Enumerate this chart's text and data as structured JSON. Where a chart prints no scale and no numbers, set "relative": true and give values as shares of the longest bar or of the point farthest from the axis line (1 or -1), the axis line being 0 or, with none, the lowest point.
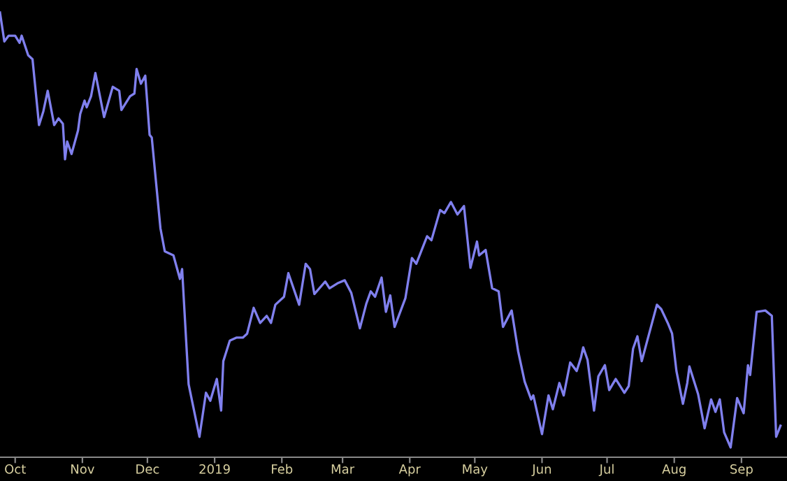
{
  "chart_data": {
    "type": "line",
    "relative": true,
    "grid": false,
    "legend": false,
    "marker": "none",
    "line_style": "solid",
    "xlim": [
      "2018-09-24",
      "2019-09-22"
    ],
    "xticks": [
      {
        "value": "2018-10-01",
        "label": "Oct"
      },
      {
        "value": "2018-11-01",
        "label": "Nov"
      },
      {
        "value": "2018-12-01",
        "label": "Dec"
      },
      {
        "value": "2019-01-01",
        "label": "2019"
      },
      {
        "value": "2019-02-01",
        "label": "Feb"
      },
      {
        "value": "2019-03-01",
        "label": "Mar"
      },
      {
        "value": "2019-04-01",
        "label": "Apr"
      },
      {
        "value": "2019-05-01",
        "label": "May"
      },
      {
        "value": "2019-06-01",
        "label": "Jun"
      },
      {
        "value": "2019-07-01",
        "label": "Jul"
      },
      {
        "value": "2019-08-01",
        "label": "Aug"
      },
      {
        "value": "2019-09-01",
        "label": "Sep"
      }
    ],
    "series": [
      {
        "color": "#8080ee",
        "x": [
          "2018-09-24",
          "2018-09-26",
          "2018-09-28",
          "2018-10-01",
          "2018-10-03",
          "2018-10-04",
          "2018-10-07",
          "2018-10-09",
          "2018-10-12",
          "2018-10-14",
          "2018-10-16",
          "2018-10-19",
          "2018-10-21",
          "2018-10-23",
          "2018-10-24",
          "2018-10-25",
          "2018-10-27",
          "2018-10-30",
          "2018-10-31",
          "2018-11-02",
          "2018-11-03",
          "2018-11-05",
          "2018-11-07",
          "2018-11-11",
          "2018-11-15",
          "2018-11-18",
          "2018-11-19",
          "2018-11-23",
          "2018-11-25",
          "2018-11-26",
          "2018-11-28",
          "2018-11-30",
          "2018-12-02",
          "2018-12-03",
          "2018-12-07",
          "2018-12-09",
          "2018-12-13",
          "2018-12-16",
          "2018-12-17",
          "2018-12-20",
          "2018-12-25",
          "2018-12-28",
          "2018-12-30",
          "2019-01-02",
          "2019-01-04",
          "2019-01-05",
          "2019-01-08",
          "2019-01-11",
          "2019-01-14",
          "2019-01-16",
          "2019-01-19",
          "2019-01-22",
          "2019-01-25",
          "2019-01-27",
          "2019-01-29",
          "2019-02-02",
          "2019-02-04",
          "2019-02-09",
          "2019-02-12",
          "2019-02-14",
          "2019-02-16",
          "2019-02-21",
          "2019-02-23",
          "2019-02-27",
          "2019-03-02",
          "2019-03-05",
          "2019-03-09",
          "2019-03-12",
          "2019-03-14",
          "2019-03-16",
          "2019-03-19",
          "2019-03-21",
          "2019-03-23",
          "2019-03-25",
          "2019-03-30",
          "2019-04-02",
          "2019-04-04",
          "2019-04-09",
          "2019-04-11",
          "2019-04-15",
          "2019-04-17",
          "2019-04-20",
          "2019-04-23",
          "2019-04-26",
          "2019-04-29",
          "2019-05-02",
          "2019-05-03",
          "2019-05-06",
          "2019-05-09",
          "2019-05-12",
          "2019-05-14",
          "2019-05-18",
          "2019-05-20",
          "2019-05-21",
          "2019-05-24",
          "2019-05-27",
          "2019-05-28",
          "2019-06-01",
          "2019-06-04",
          "2019-06-06",
          "2019-06-09",
          "2019-06-11",
          "2019-06-14",
          "2019-06-17",
          "2019-06-19",
          "2019-06-20",
          "2019-06-22",
          "2019-06-25",
          "2019-06-27",
          "2019-06-30",
          "2019-07-02",
          "2019-07-05",
          "2019-07-09",
          "2019-07-11",
          "2019-07-13",
          "2019-07-15",
          "2019-07-17",
          "2019-07-24",
          "2019-07-26",
          "2019-07-29",
          "2019-07-31",
          "2019-08-02",
          "2019-08-05",
          "2019-08-07",
          "2019-08-08",
          "2019-08-12",
          "2019-08-15",
          "2019-08-18",
          "2019-08-20",
          "2019-08-22",
          "2019-08-24",
          "2019-08-27",
          "2019-08-30",
          "2019-09-02",
          "2019-09-04",
          "2019-09-05",
          "2019-09-08",
          "2019-09-12",
          "2019-09-15",
          "2019-09-17",
          "2019-09-19"
        ],
        "values": [
          1.0,
          0.935,
          0.948,
          0.948,
          0.932,
          0.948,
          0.904,
          0.895,
          0.747,
          0.778,
          0.824,
          0.747,
          0.762,
          0.75,
          0.67,
          0.71,
          0.682,
          0.735,
          0.772,
          0.802,
          0.787,
          0.812,
          0.864,
          0.765,
          0.833,
          0.824,
          0.781,
          0.812,
          0.818,
          0.873,
          0.84,
          0.858,
          0.725,
          0.719,
          0.515,
          0.463,
          0.454,
          0.401,
          0.423,
          0.164,
          0.046,
          0.145,
          0.127,
          0.176,
          0.105,
          0.216,
          0.262,
          0.269,
          0.269,
          0.278,
          0.336,
          0.302,
          0.318,
          0.302,
          0.343,
          0.361,
          0.414,
          0.343,
          0.435,
          0.423,
          0.367,
          0.395,
          0.38,
          0.392,
          0.398,
          0.37,
          0.29,
          0.346,
          0.373,
          0.361,
          0.404,
          0.327,
          0.364,
          0.293,
          0.358,
          0.448,
          0.435,
          0.497,
          0.488,
          0.556,
          0.549,
          0.574,
          0.546,
          0.565,
          0.426,
          0.485,
          0.454,
          0.466,
          0.38,
          0.373,
          0.293,
          0.33,
          0.269,
          0.238,
          0.17,
          0.13,
          0.139,
          0.052,
          0.139,
          0.108,
          0.167,
          0.139,
          0.213,
          0.194,
          0.225,
          0.247,
          0.219,
          0.105,
          0.182,
          0.207,
          0.151,
          0.176,
          0.145,
          0.16,
          0.244,
          0.272,
          0.216,
          0.343,
          0.333,
          0.302,
          0.278,
          0.194,
          0.12,
          0.167,
          0.204,
          0.142,
          0.065,
          0.13,
          0.102,
          0.13,
          0.056,
          0.022,
          0.133,
          0.099,
          0.207,
          0.185,
          0.327,
          0.33,
          0.318,
          0.046,
          0.071
        ]
      }
    ]
  }
}
